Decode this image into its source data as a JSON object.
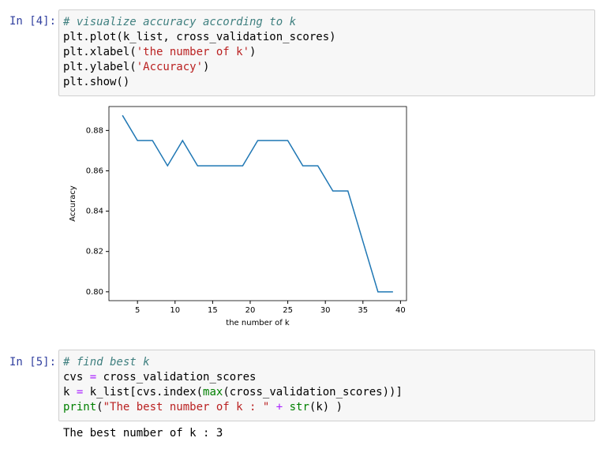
{
  "cells": [
    {
      "prompt": "In [4]:",
      "lines": [
        [
          {
            "text": "# visualize accuracy according to k",
            "color": "#408080",
            "italic": true
          }
        ],
        [
          {
            "text": "plt.plot(k_list, cross_validation_scores)",
            "color": "#000000"
          }
        ],
        [
          {
            "text": "plt.xlabel(",
            "color": "#000000"
          },
          {
            "text": "'the number of k'",
            "color": "#BA2121"
          },
          {
            "text": ")",
            "color": "#000000"
          }
        ],
        [
          {
            "text": "plt.ylabel(",
            "color": "#000000"
          },
          {
            "text": "'Accuracy'",
            "color": "#BA2121"
          },
          {
            "text": ")",
            "color": "#000000"
          }
        ],
        [
          {
            "text": "plt.show()",
            "color": "#000000"
          }
        ]
      ]
    },
    {
      "prompt": "In [5]:",
      "lines": [
        [
          {
            "text": "# find best k",
            "color": "#408080",
            "italic": true
          }
        ],
        [
          {
            "text": "cvs ",
            "color": "#000000"
          },
          {
            "text": "=",
            "color": "#AA22FF"
          },
          {
            "text": " cross_validation_scores",
            "color": "#000000"
          }
        ],
        [
          {
            "text": "k ",
            "color": "#000000"
          },
          {
            "text": "=",
            "color": "#AA22FF"
          },
          {
            "text": " k_list[cvs.index(",
            "color": "#000000"
          },
          {
            "text": "max",
            "color": "#008000"
          },
          {
            "text": "(cross_validation_scores))]",
            "color": "#000000"
          }
        ],
        [
          {
            "text": "print",
            "color": "#008000"
          },
          {
            "text": "(",
            "color": "#000000"
          },
          {
            "text": "\"The best number of k : \"",
            "color": "#BA2121"
          },
          {
            "text": " ",
            "color": "#000000"
          },
          {
            "text": "+",
            "color": "#AA22FF"
          },
          {
            "text": " ",
            "color": "#000000"
          },
          {
            "text": "str",
            "color": "#008000"
          },
          {
            "text": "(k) )",
            "color": "#000000"
          }
        ]
      ],
      "output": "The best number of k : 3"
    }
  ],
  "chart_data": {
    "type": "line",
    "x_label": "the number of k",
    "y_label": "Accuracy",
    "x": [
      3,
      5,
      7,
      9,
      11,
      13,
      15,
      17,
      19,
      21,
      23,
      25,
      27,
      29,
      31,
      33,
      35,
      37,
      39
    ],
    "series": [
      {
        "color": "#1f77b4",
        "values": [
          0.8875,
          0.875,
          0.875,
          0.8625,
          0.875,
          0.8625,
          0.8625,
          0.8625,
          0.8625,
          0.875,
          0.875,
          0.875,
          0.8625,
          0.8625,
          0.85,
          0.85,
          0.825,
          0.8,
          0.8
        ]
      }
    ],
    "xlim": [
      1.2,
      40.8
    ],
    "xticks": [
      5,
      10,
      15,
      20,
      25,
      30,
      35,
      40
    ],
    "ylim": [
      0.795625,
      0.891875
    ],
    "yticks": [
      {
        "value": 0.8,
        "label": "0.80"
      },
      0.82,
      0.84,
      0.86,
      0.88
    ],
    "grid": false
  }
}
